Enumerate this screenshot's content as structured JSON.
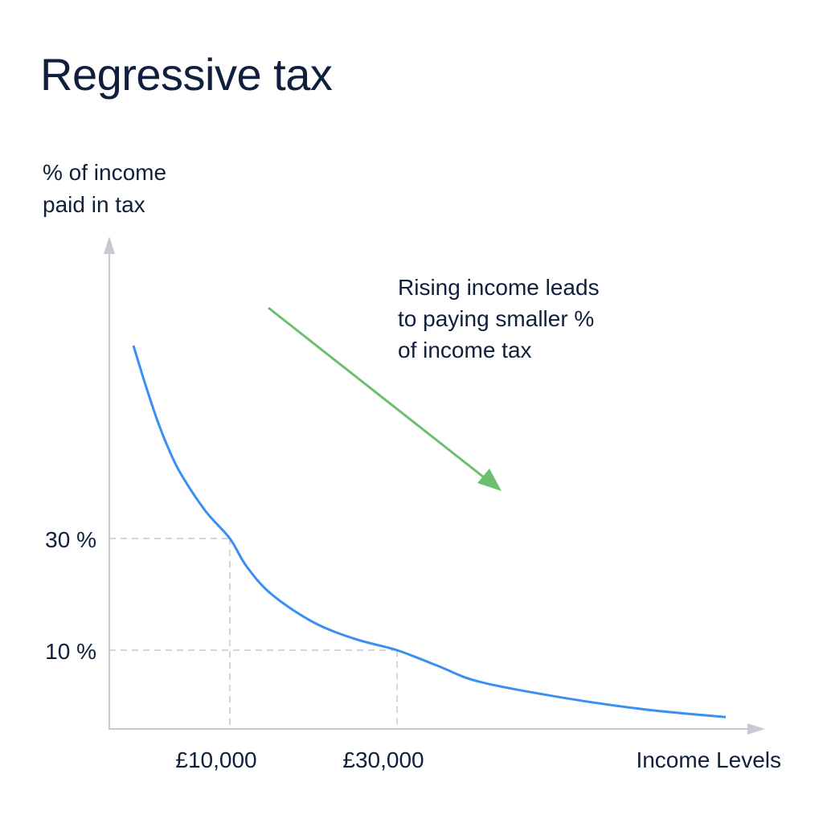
{
  "title": "Regressive tax",
  "ylabel_lines": [
    "% of income",
    "paid in tax"
  ],
  "annotation_lines": [
    "Rising income leads",
    "to paying smaller %",
    "of income tax"
  ],
  "colors": {
    "curve": "#3a8ff0",
    "arrow": "#6cbf6c",
    "axis": "#c7cad3",
    "guide": "#c9c9c9",
    "text": "#0f1f3d"
  },
  "chart_data": {
    "type": "line",
    "title": "Regressive tax",
    "xlabel": "Income Levels",
    "ylabel": "% of income paid in tax",
    "x_ticks": [
      {
        "value": 10000,
        "label": "£10,000"
      },
      {
        "value": 30000,
        "label": "£30,000"
      }
    ],
    "y_ticks": [
      {
        "value": 30,
        "label": "30 %"
      },
      {
        "value": 10,
        "label": "10 %"
      }
    ],
    "highlighted_points": [
      {
        "x": 10000,
        "y": 30
      },
      {
        "x": 30000,
        "y": 10
      }
    ],
    "series": [
      {
        "x": [
          2000,
          3000,
          4000,
          5000,
          6000,
          8000,
          10000,
          12000,
          15000,
          20000,
          25000,
          30000,
          35000,
          40000,
          50000,
          60000,
          70000
        ],
        "y": [
          94,
          81,
          69,
          59,
          51,
          39,
          30,
          25,
          20,
          15,
          12,
          10,
          8,
          6,
          4,
          2.5,
          1.5
        ]
      }
    ],
    "grid": false,
    "annotation": "Rising income leads to paying smaller % of income tax"
  }
}
